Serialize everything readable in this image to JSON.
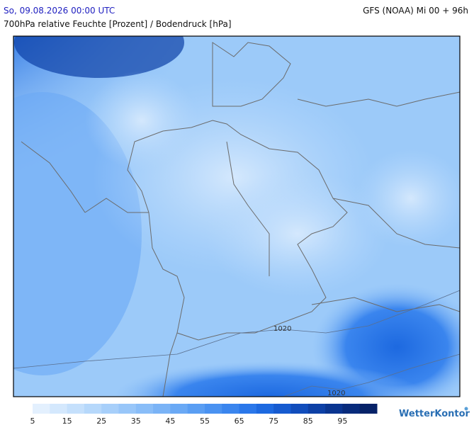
{
  "header": {
    "valid_time": "So, 09.08.2026 00:00 UTC",
    "model": "GFS (NOAA) Mi 00 + 96h",
    "subtitle": "700hPa relative Feuchte [Prozent] / Bodendruck [hPa]"
  },
  "map": {
    "isobar_labels": [
      "1020",
      "1020"
    ]
  },
  "legend": {
    "ticks": [
      5,
      15,
      25,
      35,
      45,
      55,
      65,
      75,
      85,
      95
    ],
    "colors": [
      "#e3f0fe",
      "#d4e8fd",
      "#c5e0fc",
      "#b6d8fb",
      "#a7cffa",
      "#98c6f9",
      "#89bdf8",
      "#7ab3f6",
      "#6aa9f5",
      "#5a9ef3",
      "#4a92f1",
      "#3a85ee",
      "#2a77ea",
      "#1d69e0",
      "#165bd0",
      "#114dbc",
      "#0d40a6",
      "#0a3590",
      "#082b7c",
      "#062268"
    ]
  },
  "logo": "WetterKontor"
}
